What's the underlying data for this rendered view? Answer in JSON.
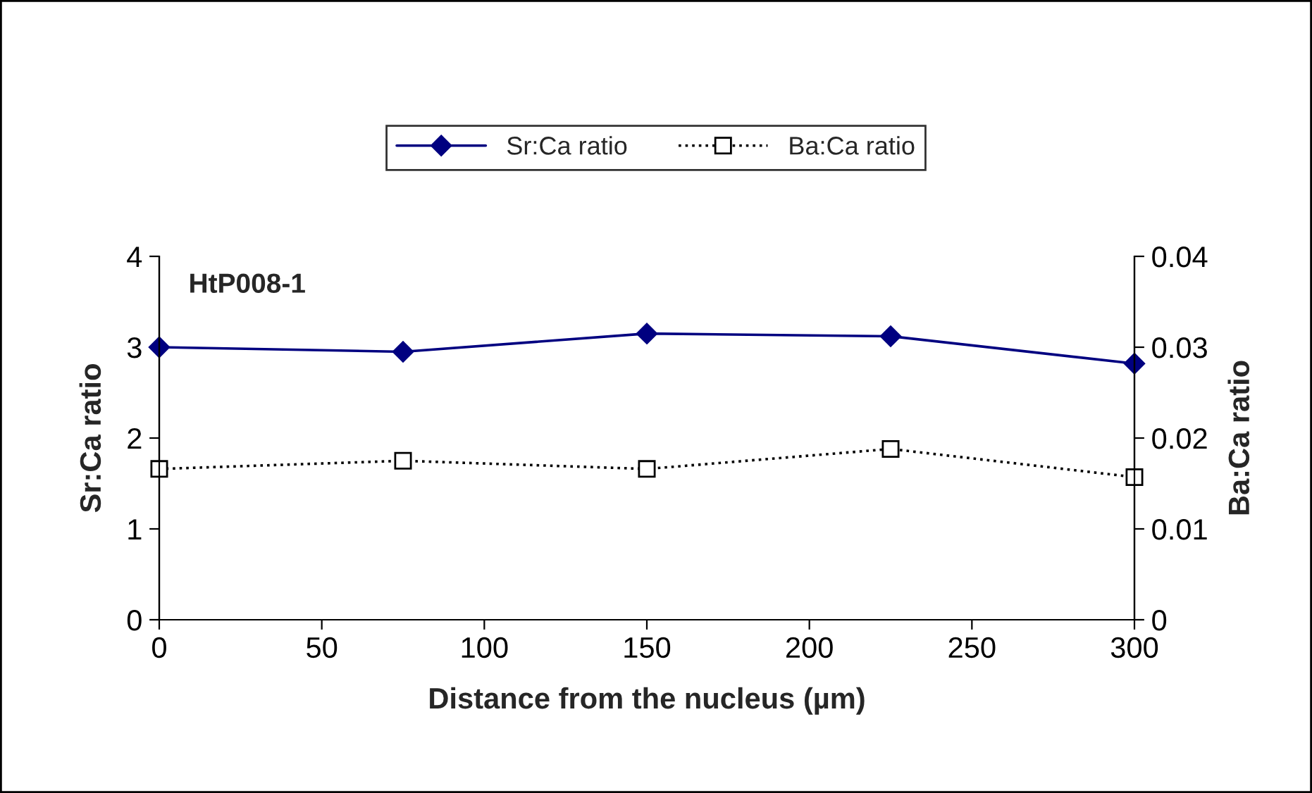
{
  "chart_data": {
    "type": "line",
    "xlabel": "Distance from the nucleus (µm)",
    "ylabel": "Sr:Ca ratio",
    "y2label": "Ba:Ca ratio",
    "annotations": [
      "HtP008-1"
    ],
    "x": [
      0,
      75,
      150,
      225,
      300
    ],
    "series": [
      {
        "name": "Sr:Ca ratio",
        "color": "#000080",
        "values": [
          3.0,
          2.95,
          3.15,
          3.12,
          2.82
        ],
        "marker": "diamond",
        "line_style": "solid"
      },
      {
        "name": "Ba:Ca ratio",
        "color": "#000000",
        "values": [
          0.0166,
          0.0175,
          0.0166,
          0.0188,
          0.0157
        ],
        "marker": "square",
        "line_style": "dotted",
        "axis": "y2"
      }
    ],
    "xlim": [
      0,
      300
    ],
    "xticks": [
      0,
      50,
      100,
      150,
      200,
      250,
      300
    ],
    "ylim": [
      0,
      4
    ],
    "yticks": [
      0,
      1,
      2,
      3,
      4
    ],
    "y2lim": [
      0,
      0.04
    ],
    "y2ticks": [
      0,
      0.01,
      0.02,
      0.03,
      0.04
    ],
    "grid": false,
    "legend": "top"
  }
}
